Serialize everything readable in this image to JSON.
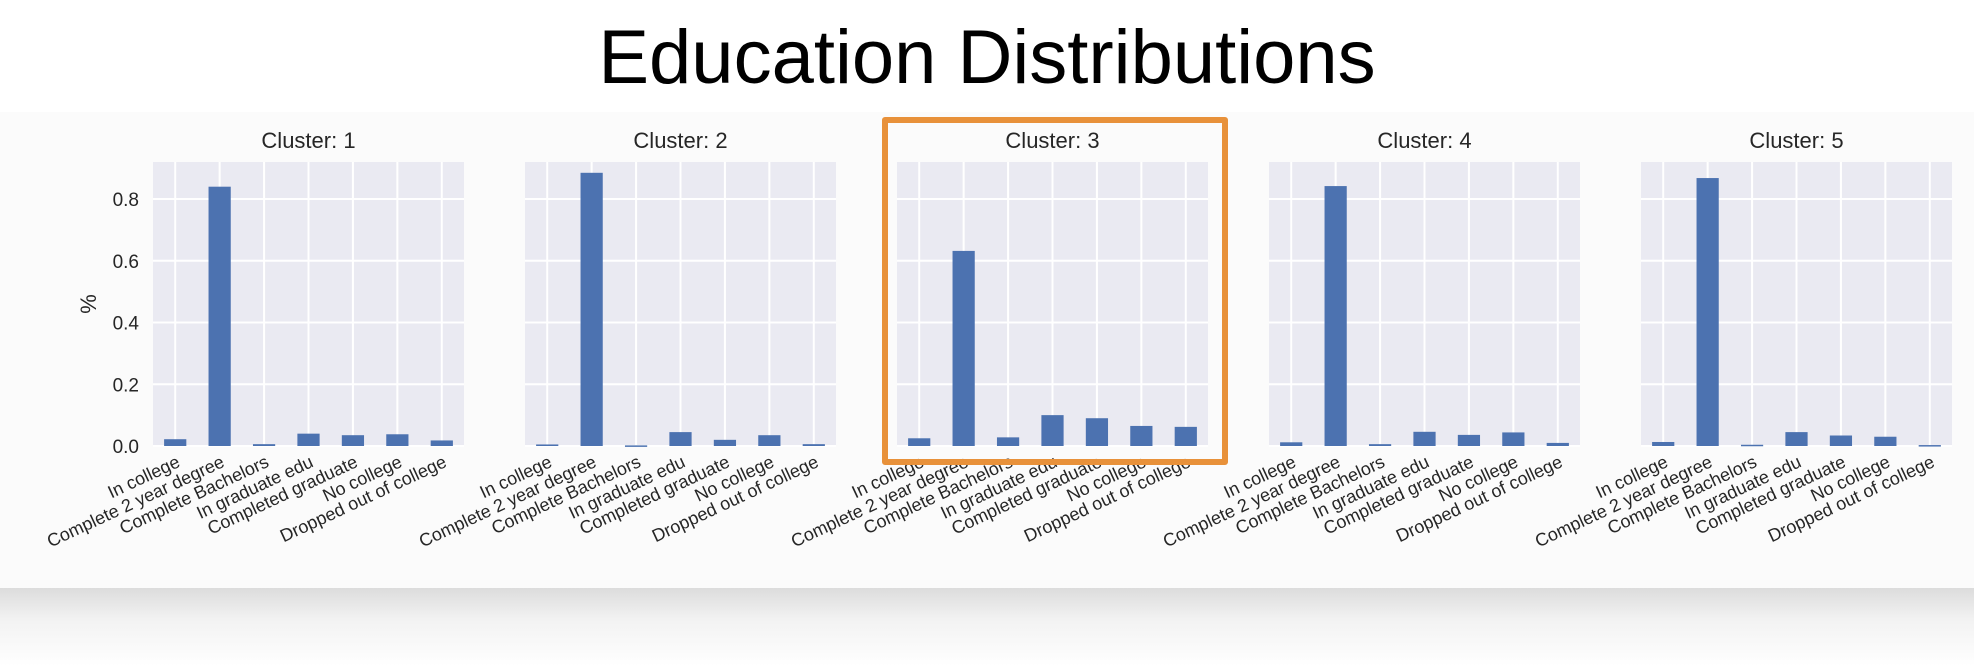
{
  "title": "Education Distributions",
  "highlight_color": "#e8913a",
  "bar_color": "#4c72b0",
  "panel_bg": "#eaeaf2",
  "chart_data": [
    {
      "type": "bar",
      "title": "Cluster: 1",
      "ylabel": "%",
      "ylim": [
        0,
        0.92
      ],
      "yticks": [
        "0.0",
        "0.2",
        "0.4",
        "0.6",
        "0.8"
      ],
      "grid": true,
      "categories": [
        "In college",
        "Complete 2 year degree",
        "Complete Bachelors",
        "In graduate edu",
        "Completed graduate",
        "No college",
        "Dropped out of college"
      ],
      "values": [
        0.022,
        0.84,
        0.006,
        0.04,
        0.035,
        0.038,
        0.018
      ]
    },
    {
      "type": "bar",
      "title": "Cluster: 2",
      "ylim": [
        0,
        0.92
      ],
      "grid": true,
      "categories": [
        "In college",
        "Complete 2 year degree",
        "Complete Bachelors",
        "In graduate edu",
        "Completed graduate",
        "No college",
        "Dropped out of college"
      ],
      "values": [
        0.005,
        0.885,
        0.002,
        0.045,
        0.02,
        0.035,
        0.006
      ]
    },
    {
      "type": "bar",
      "title": "Cluster: 3",
      "ylim": [
        0,
        0.92
      ],
      "grid": true,
      "highlighted": true,
      "categories": [
        "In college",
        "Complete 2 year degree",
        "Complete Bachelors",
        "In graduate edu",
        "Completed graduate",
        "No college",
        "Dropped out of college"
      ],
      "values": [
        0.025,
        0.632,
        0.028,
        0.1,
        0.09,
        0.065,
        0.062
      ]
    },
    {
      "type": "bar",
      "title": "Cluster: 4",
      "ylim": [
        0,
        0.92
      ],
      "grid": true,
      "categories": [
        "In college",
        "Complete 2 year degree",
        "Complete Bachelors",
        "In graduate edu",
        "Completed graduate",
        "No college",
        "Dropped out of college"
      ],
      "values": [
        0.012,
        0.842,
        0.006,
        0.046,
        0.036,
        0.044,
        0.01
      ]
    },
    {
      "type": "bar",
      "title": "Cluster: 5",
      "ylim": [
        0,
        0.92
      ],
      "grid": true,
      "categories": [
        "In college",
        "Complete 2 year degree",
        "Complete Bachelors",
        "In graduate edu",
        "Completed graduate",
        "No college",
        "Dropped out of college"
      ],
      "values": [
        0.013,
        0.868,
        0.004,
        0.045,
        0.034,
        0.03,
        0.003
      ]
    }
  ]
}
